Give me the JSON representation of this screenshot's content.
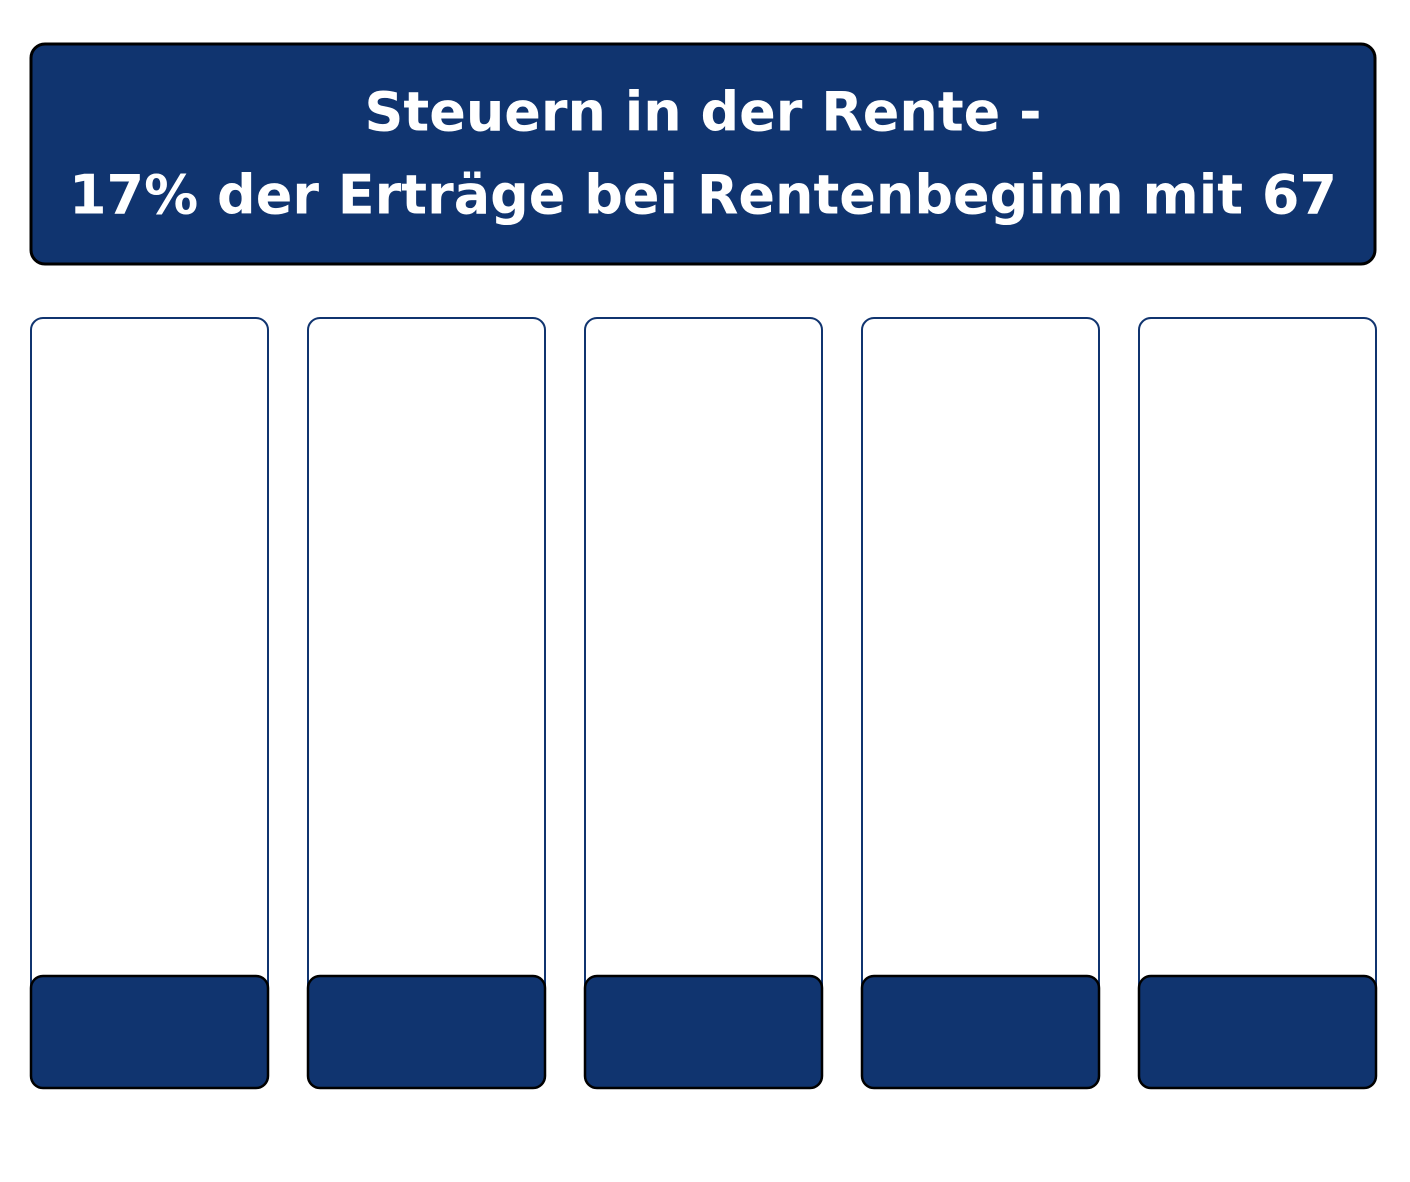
{
  "header": {
    "title_lines": [
      "Steuern in der Rente -",
      "17% der Erträge bei Rentenbeginn mit 67"
    ]
  }
}
